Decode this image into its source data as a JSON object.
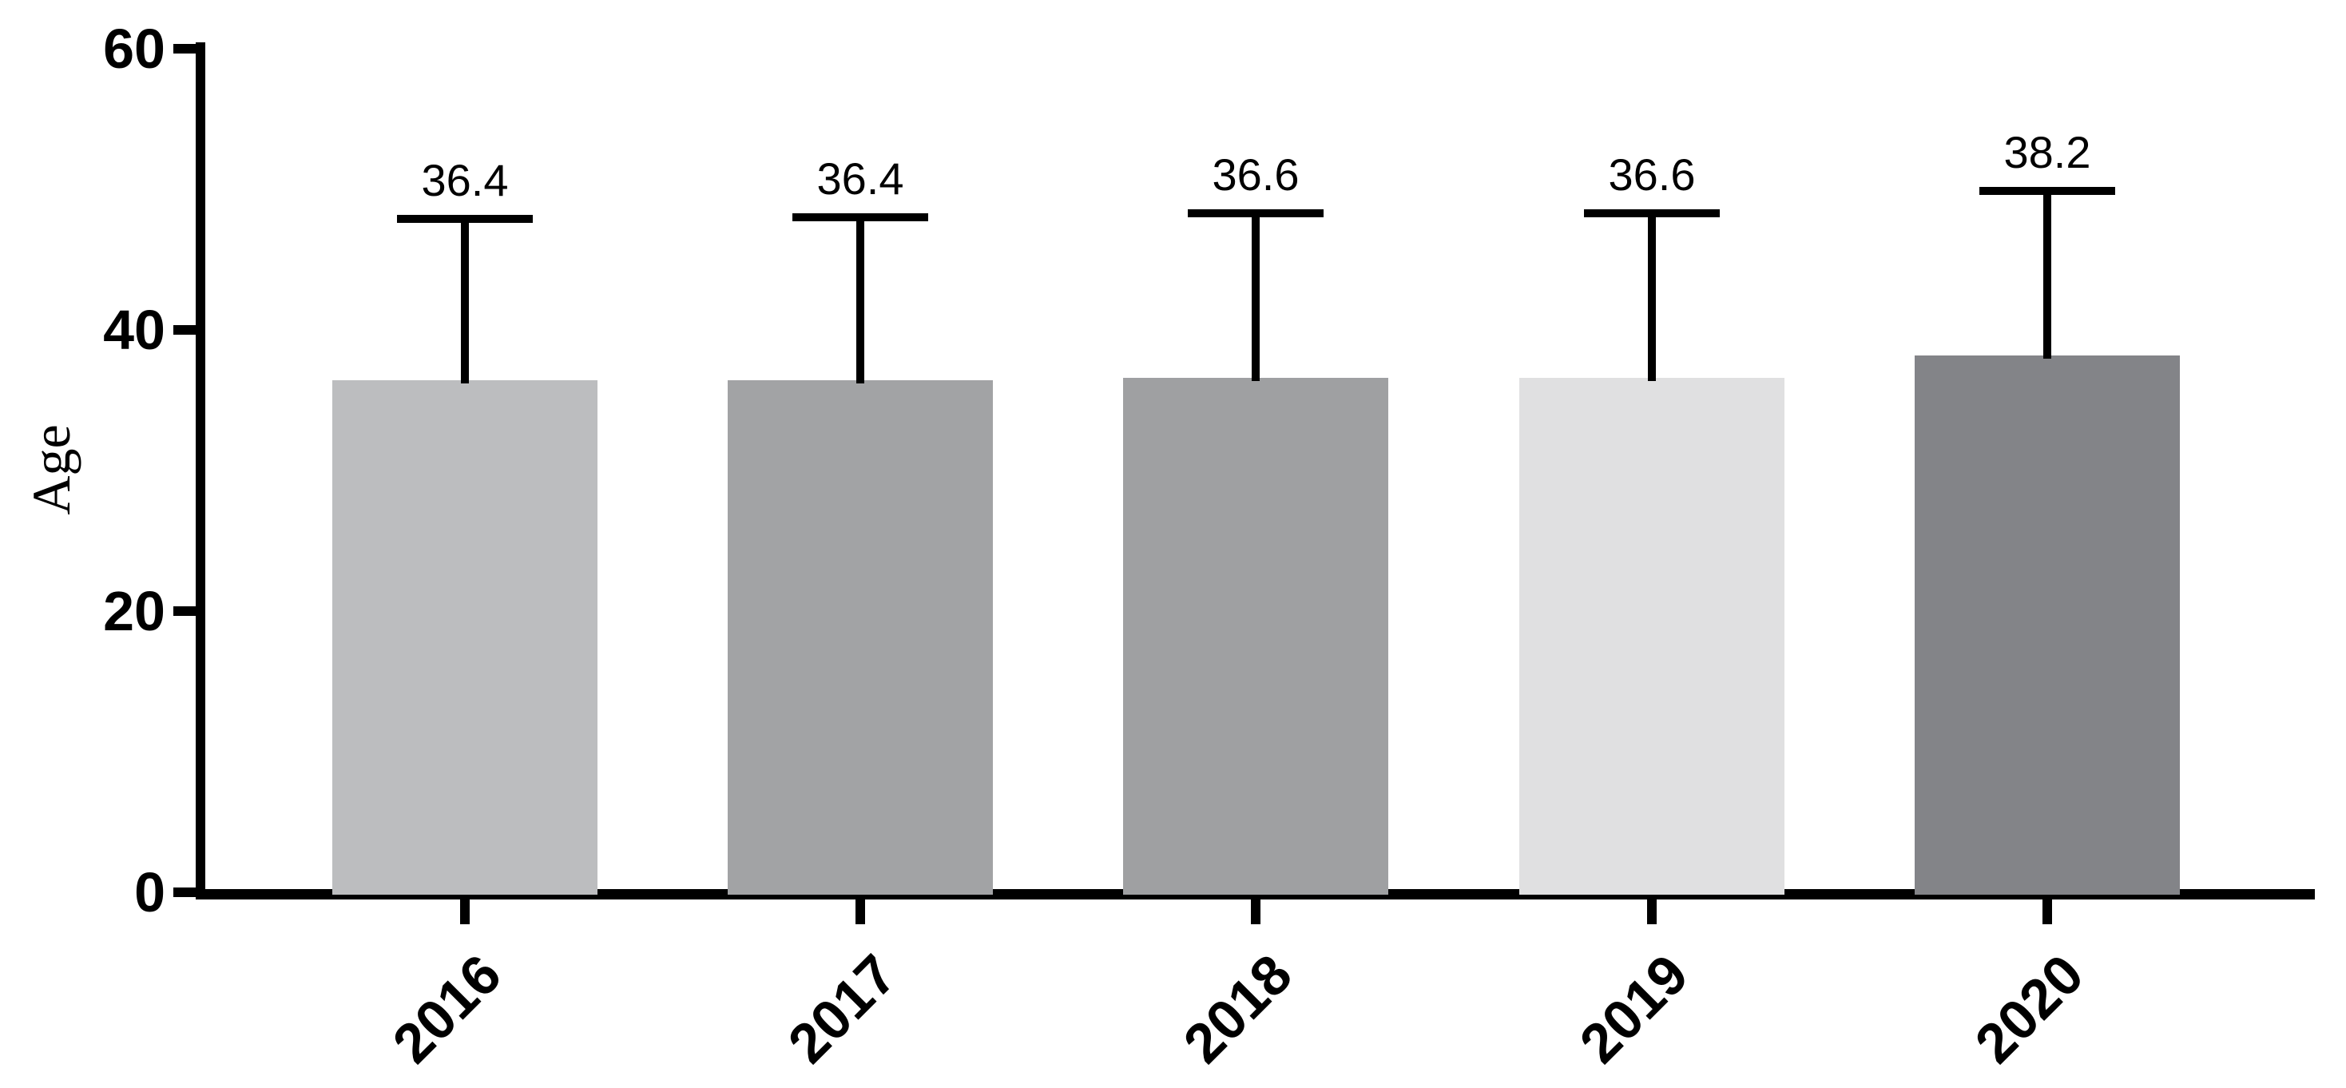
{
  "chart_data": {
    "type": "bar",
    "title": "",
    "xlabel": "",
    "ylabel": "Age",
    "categories": [
      "2016",
      "2017",
      "2018",
      "2019",
      "2020"
    ],
    "values": [
      36.4,
      36.4,
      36.6,
      36.6,
      38.2
    ],
    "value_labels": [
      "36.4",
      "36.4",
      "36.6",
      "36.6",
      "38.2"
    ],
    "errors_sd": [
      11.5,
      11.6,
      11.7,
      11.7,
      11.7
    ],
    "error_bar_style": "upper-only-with-cap",
    "bar_colors": [
      "#bcbdbf",
      "#a2a3a5",
      "#9fa0a2",
      "#e0e0e1",
      "#838488"
    ],
    "axis_color": "#000000",
    "text_color": "#000000",
    "background_color": "#ffffff",
    "ylim": [
      0,
      60
    ],
    "yticks": [
      0,
      20,
      40,
      60
    ],
    "ytick_labels": [
      "0",
      "20",
      "40",
      "60"
    ],
    "grid": false,
    "legend": "none",
    "xtick_label_rotation_deg": -45
  }
}
